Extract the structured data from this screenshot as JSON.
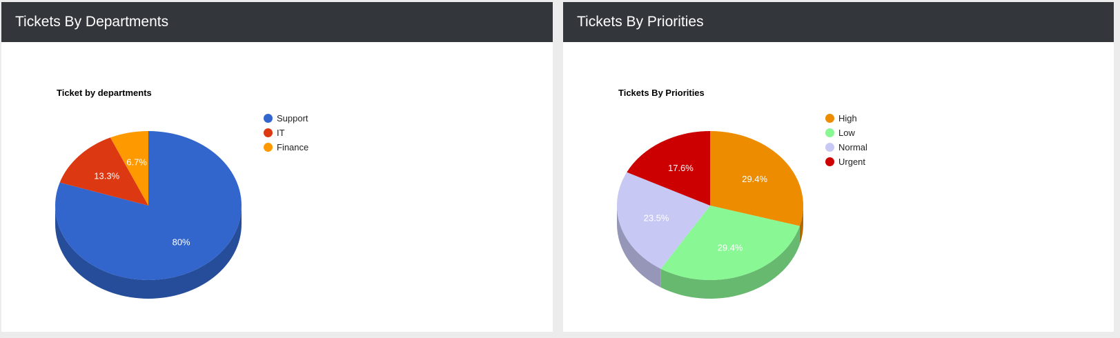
{
  "panels": [
    {
      "header": "Tickets By Departments",
      "chart_title": "Ticket by departments"
    },
    {
      "header": "Tickets By Priorities",
      "chart_title": "Tickets By Priorities"
    }
  ],
  "chart_data": [
    {
      "type": "pie",
      "title": "Ticket by departments",
      "is3D": true,
      "legend_position": "right",
      "categories": [
        "Support",
        "IT",
        "Finance"
      ],
      "values": [
        80,
        13.3,
        6.7
      ],
      "labels": [
        "80%",
        "13.3%",
        "6.7%"
      ],
      "colors": [
        "#3366cc",
        "#dc3912",
        "#ff9900"
      ],
      "side_colors": [
        "#264d99",
        "#a52b0e",
        "#bf7300"
      ]
    },
    {
      "type": "pie",
      "title": "Tickets By Priorities",
      "is3D": true,
      "legend_position": "right",
      "categories": [
        "High",
        "Low",
        "Normal",
        "Urgent"
      ],
      "values": [
        29.4,
        29.4,
        23.5,
        17.6
      ],
      "labels": [
        "29.4%",
        "29.4%",
        "23.5%",
        "17.6%"
      ],
      "colors": [
        "#ee8c00",
        "#88f794",
        "#c8c8f5",
        "#cc0000"
      ],
      "side_colors": [
        "#b36900",
        "#66b96f",
        "#9696b8",
        "#990000"
      ]
    }
  ]
}
